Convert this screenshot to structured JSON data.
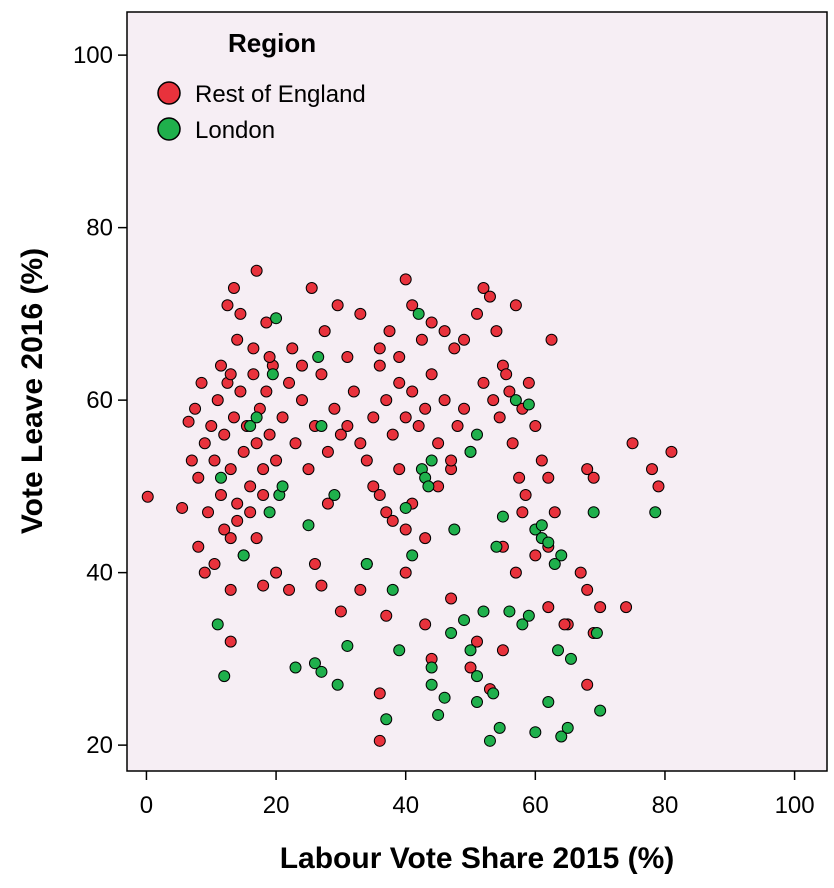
{
  "chart_data": {
    "type": "scatter",
    "xlabel": "Labour Vote Share 2015 (%)",
    "ylabel": "Vote Leave 2016 (%)",
    "xlim": [
      -3,
      105
    ],
    "ylim": [
      17,
      105
    ],
    "xticks": [
      0,
      20,
      40,
      60,
      80,
      100
    ],
    "yticks": [
      20,
      40,
      60,
      80,
      100
    ],
    "grid": false,
    "plot_background": "#f6eef4",
    "legend": {
      "title": "Region",
      "placement": "top-left"
    },
    "series": [
      {
        "name": "Rest of England",
        "color": "#e8323c",
        "points": [
          [
            0.2,
            48.8
          ],
          [
            5.5,
            47.5
          ],
          [
            6.5,
            57.5
          ],
          [
            7,
            53
          ],
          [
            7.5,
            59
          ],
          [
            8,
            51
          ],
          [
            8.5,
            62
          ],
          [
            9,
            55
          ],
          [
            9.5,
            47
          ],
          [
            10,
            57
          ],
          [
            10.5,
            53
          ],
          [
            11,
            60
          ],
          [
            11.5,
            49
          ],
          [
            12,
            56
          ],
          [
            12.5,
            62
          ],
          [
            13,
            52
          ],
          [
            13.5,
            58
          ],
          [
            14,
            46
          ],
          [
            14.5,
            61
          ],
          [
            15,
            54
          ],
          [
            15.5,
            57
          ],
          [
            16,
            50
          ],
          [
            16.5,
            63
          ],
          [
            17,
            55
          ],
          [
            17.5,
            59
          ],
          [
            18,
            52
          ],
          [
            18.5,
            61
          ],
          [
            19,
            56
          ],
          [
            19.5,
            64
          ],
          [
            20,
            53
          ],
          [
            8,
            43
          ],
          [
            9,
            40
          ],
          [
            10.5,
            41
          ],
          [
            12,
            45
          ],
          [
            13,
            44
          ],
          [
            14,
            48
          ],
          [
            15,
            42
          ],
          [
            16,
            47
          ],
          [
            17,
            44
          ],
          [
            18,
            49
          ],
          [
            12.5,
            71
          ],
          [
            13.5,
            73
          ],
          [
            14.5,
            70
          ],
          [
            17,
            75
          ],
          [
            18.5,
            69
          ],
          [
            16.5,
            66
          ],
          [
            14,
            67
          ],
          [
            19,
            65
          ],
          [
            11.5,
            64
          ],
          [
            13,
            63
          ],
          [
            21,
            58
          ],
          [
            22,
            62
          ],
          [
            23,
            55
          ],
          [
            24,
            60
          ],
          [
            25,
            52
          ],
          [
            26,
            57
          ],
          [
            27,
            63
          ],
          [
            28,
            54
          ],
          [
            29,
            59
          ],
          [
            30,
            56
          ],
          [
            22.5,
            66
          ],
          [
            24,
            64
          ],
          [
            25.5,
            73
          ],
          [
            27.5,
            68
          ],
          [
            29.5,
            71
          ],
          [
            31,
            65
          ],
          [
            33,
            70
          ],
          [
            28,
            48
          ],
          [
            26,
            41
          ],
          [
            27,
            38.5
          ],
          [
            31,
            57
          ],
          [
            32,
            61
          ],
          [
            33,
            55
          ],
          [
            34,
            53
          ],
          [
            35,
            58
          ],
          [
            36,
            64
          ],
          [
            37,
            60
          ],
          [
            38,
            56
          ],
          [
            39,
            62
          ],
          [
            40,
            58
          ],
          [
            41,
            61
          ],
          [
            42,
            57
          ],
          [
            43,
            59
          ],
          [
            44,
            63
          ],
          [
            45,
            55
          ],
          [
            46,
            60
          ],
          [
            47,
            52
          ],
          [
            48,
            57
          ],
          [
            49,
            59
          ],
          [
            50,
            54
          ],
          [
            36,
            66
          ],
          [
            37.5,
            68
          ],
          [
            39,
            65
          ],
          [
            40,
            74
          ],
          [
            41,
            71
          ],
          [
            42.5,
            67
          ],
          [
            44,
            69
          ],
          [
            46,
            68
          ],
          [
            47.5,
            66
          ],
          [
            49,
            67
          ],
          [
            51,
            70
          ],
          [
            52,
            73
          ],
          [
            53,
            72
          ],
          [
            54,
            68
          ],
          [
            55,
            64
          ],
          [
            56,
            61
          ],
          [
            57,
            71
          ],
          [
            58,
            59
          ],
          [
            59,
            62
          ],
          [
            60,
            57
          ],
          [
            52,
            62
          ],
          [
            53.5,
            60
          ],
          [
            54.5,
            58
          ],
          [
            55.5,
            63
          ],
          [
            56.5,
            55
          ],
          [
            57.5,
            51
          ],
          [
            58.5,
            49
          ],
          [
            61,
            53
          ],
          [
            62,
            51
          ],
          [
            62.5,
            67
          ],
          [
            35,
            50
          ],
          [
            36,
            49
          ],
          [
            37,
            47
          ],
          [
            38,
            46
          ],
          [
            39,
            52
          ],
          [
            40,
            45
          ],
          [
            41,
            48
          ],
          [
            43,
            44
          ],
          [
            45,
            50
          ],
          [
            47,
            53
          ],
          [
            30,
            35.5
          ],
          [
            33,
            38
          ],
          [
            34,
            41
          ],
          [
            36,
            26
          ],
          [
            36,
            20.5
          ],
          [
            37,
            35
          ],
          [
            40,
            40
          ],
          [
            43,
            34
          ],
          [
            44,
            30
          ],
          [
            47,
            37
          ],
          [
            50,
            29
          ],
          [
            51,
            32
          ],
          [
            53,
            26.5
          ],
          [
            55,
            31
          ],
          [
            55,
            43
          ],
          [
            57,
            40
          ],
          [
            58,
            47
          ],
          [
            60,
            42
          ],
          [
            62,
            43
          ],
          [
            63,
            47
          ],
          [
            62,
            36
          ],
          [
            65,
            34
          ],
          [
            67,
            40
          ],
          [
            68,
            38
          ],
          [
            69,
            33
          ],
          [
            70,
            36
          ],
          [
            68,
            27
          ],
          [
            68,
            52
          ],
          [
            69,
            51
          ],
          [
            75,
            55
          ],
          [
            74,
            36
          ],
          [
            78,
            52
          ],
          [
            79,
            50
          ],
          [
            81,
            54
          ],
          [
            64.5,
            34
          ],
          [
            13,
            38
          ],
          [
            13,
            32
          ],
          [
            18,
            38.5
          ],
          [
            22,
            38
          ],
          [
            20,
            40
          ]
        ]
      },
      {
        "name": "London",
        "color": "#1fb04c",
        "points": [
          [
            11,
            34
          ],
          [
            12,
            28
          ],
          [
            11.5,
            51
          ],
          [
            15,
            42
          ],
          [
            16,
            57
          ],
          [
            17,
            58
          ],
          [
            19,
            47
          ],
          [
            20,
            69.5
          ],
          [
            19.5,
            63
          ],
          [
            20.5,
            49
          ],
          [
            21,
            50
          ],
          [
            23,
            29
          ],
          [
            25,
            45.5
          ],
          [
            26,
            29.5
          ],
          [
            27,
            28.5
          ],
          [
            26.5,
            65
          ],
          [
            27,
            57
          ],
          [
            29,
            49
          ],
          [
            29.5,
            27
          ],
          [
            31,
            31.5
          ],
          [
            34,
            41
          ],
          [
            37,
            23
          ],
          [
            38,
            38
          ],
          [
            39,
            31
          ],
          [
            40,
            47.5
          ],
          [
            41,
            42
          ],
          [
            42,
            70
          ],
          [
            42.5,
            52
          ],
          [
            43,
            51
          ],
          [
            43.5,
            50
          ],
          [
            44,
            53
          ],
          [
            44,
            29
          ],
          [
            44,
            27
          ],
          [
            45,
            23.5
          ],
          [
            46,
            25.5
          ],
          [
            47,
            33
          ],
          [
            47.5,
            45
          ],
          [
            49,
            34.5
          ],
          [
            50,
            31
          ],
          [
            50,
            54
          ],
          [
            51,
            56
          ],
          [
            51,
            25
          ],
          [
            51,
            28
          ],
          [
            52,
            35.5
          ],
          [
            53,
            20.5
          ],
          [
            53.5,
            26
          ],
          [
            54,
            43
          ],
          [
            54.5,
            22
          ],
          [
            55,
            46.5
          ],
          [
            56,
            35.5
          ],
          [
            57,
            60
          ],
          [
            58,
            34
          ],
          [
            59,
            59.5
          ],
          [
            59,
            35
          ],
          [
            60,
            21.5
          ],
          [
            60,
            45
          ],
          [
            61,
            44
          ],
          [
            61,
            45.5
          ],
          [
            62,
            25
          ],
          [
            62,
            43.5
          ],
          [
            63,
            41
          ],
          [
            63.5,
            31
          ],
          [
            64,
            42
          ],
          [
            64,
            21
          ],
          [
            65,
            22
          ],
          [
            65.5,
            30
          ],
          [
            69,
            47
          ],
          [
            69.5,
            33
          ],
          [
            70,
            24
          ],
          [
            78.5,
            47
          ]
        ]
      }
    ]
  }
}
